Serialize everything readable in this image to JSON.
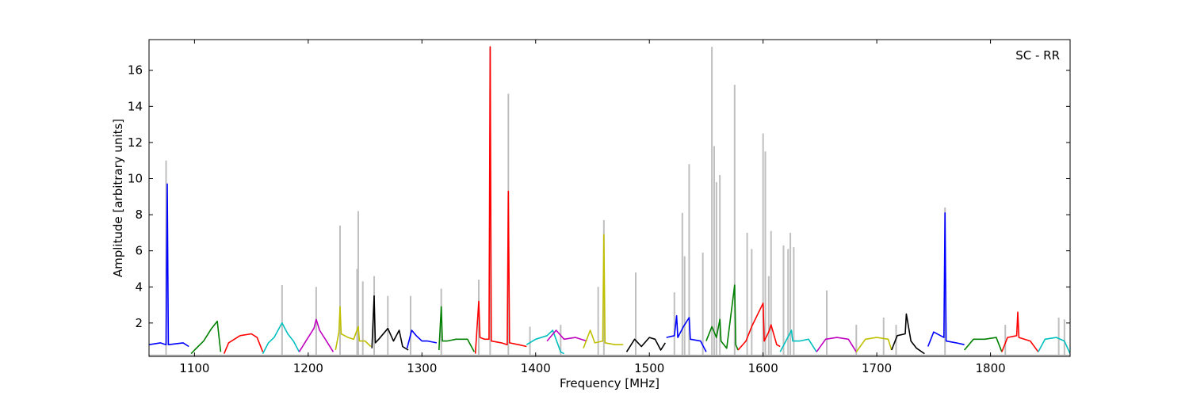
{
  "chart_data": {
    "type": "line",
    "xlabel": "Frequency [MHz]",
    "ylabel": "Amplitude [arbitrary units]",
    "annotation": "SC - RR",
    "xlim": [
      1060,
      1870
    ],
    "ylim": [
      0.15,
      17.7
    ],
    "xticks": [
      1100,
      1200,
      1300,
      1400,
      1500,
      1600,
      1700,
      1800
    ],
    "yticks": [
      2,
      4,
      6,
      8,
      10,
      12,
      14,
      16
    ],
    "grid": false,
    "background_color": "#bfbfbf",
    "background_baseline": 0.25,
    "background_spikes": [
      {
        "x": 1075,
        "y": 11.0
      },
      {
        "x": 1177,
        "y": 4.1
      },
      {
        "x": 1207,
        "y": 4.0
      },
      {
        "x": 1228,
        "y": 7.4
      },
      {
        "x": 1243,
        "y": 5.0
      },
      {
        "x": 1244,
        "y": 8.2
      },
      {
        "x": 1248,
        "y": 4.3
      },
      {
        "x": 1258,
        "y": 4.6
      },
      {
        "x": 1270,
        "y": 3.5
      },
      {
        "x": 1290,
        "y": 3.5
      },
      {
        "x": 1317,
        "y": 3.9
      },
      {
        "x": 1350,
        "y": 4.4
      },
      {
        "x": 1360,
        "y": 17.3
      },
      {
        "x": 1376,
        "y": 14.7
      },
      {
        "x": 1395,
        "y": 1.8
      },
      {
        "x": 1422,
        "y": 1.9
      },
      {
        "x": 1455,
        "y": 4.0
      },
      {
        "x": 1460,
        "y": 7.7
      },
      {
        "x": 1488,
        "y": 4.8
      },
      {
        "x": 1522,
        "y": 3.7
      },
      {
        "x": 1529,
        "y": 8.1
      },
      {
        "x": 1531,
        "y": 5.7
      },
      {
        "x": 1535,
        "y": 10.8
      },
      {
        "x": 1547,
        "y": 5.9
      },
      {
        "x": 1555,
        "y": 17.3
      },
      {
        "x": 1557,
        "y": 11.8
      },
      {
        "x": 1559,
        "y": 9.8
      },
      {
        "x": 1562,
        "y": 10.2
      },
      {
        "x": 1575,
        "y": 15.2
      },
      {
        "x": 1586,
        "y": 7.0
      },
      {
        "x": 1590,
        "y": 6.1
      },
      {
        "x": 1600,
        "y": 12.5
      },
      {
        "x": 1602,
        "y": 11.5
      },
      {
        "x": 1605,
        "y": 4.6
      },
      {
        "x": 1607,
        "y": 7.1
      },
      {
        "x": 1618,
        "y": 6.3
      },
      {
        "x": 1622,
        "y": 6.1
      },
      {
        "x": 1624,
        "y": 7.0
      },
      {
        "x": 1627,
        "y": 6.2
      },
      {
        "x": 1656,
        "y": 3.8
      },
      {
        "x": 1682,
        "y": 1.9
      },
      {
        "x": 1706,
        "y": 2.3
      },
      {
        "x": 1717,
        "y": 1.9
      },
      {
        "x": 1760,
        "y": 8.4
      },
      {
        "x": 1813,
        "y": 1.9
      },
      {
        "x": 1860,
        "y": 2.3
      },
      {
        "x": 1865,
        "y": 2.2
      }
    ],
    "series": [
      {
        "color": "#0000ff",
        "x": [
          1060,
          1070,
          1075,
          1076,
          1077,
          1090,
          1095
        ],
        "y": [
          0.8,
          0.9,
          0.8,
          9.7,
          0.8,
          0.9,
          0.7
        ]
      },
      {
        "color": "#008000",
        "x": [
          1097,
          1100,
          1108,
          1115,
          1120,
          1123
        ],
        "y": [
          0.3,
          0.5,
          1.0,
          1.7,
          2.1,
          0.4
        ]
      },
      {
        "color": "#ff0000",
        "x": [
          1126,
          1130,
          1140,
          1150,
          1155,
          1160
        ],
        "y": [
          0.3,
          0.9,
          1.3,
          1.4,
          1.2,
          0.4
        ]
      },
      {
        "color": "#00bfbf",
        "x": [
          1160,
          1165,
          1170,
          1177,
          1182,
          1187,
          1192
        ],
        "y": [
          0.3,
          0.9,
          1.2,
          2.0,
          1.4,
          1.0,
          0.4
        ]
      },
      {
        "color": "#bf00bf",
        "x": [
          1192,
          1200,
          1205,
          1207,
          1210,
          1215,
          1222
        ],
        "y": [
          0.4,
          1.2,
          1.7,
          2.2,
          1.6,
          1.1,
          0.4
        ]
      },
      {
        "color": "#bfbf00",
        "x": [
          1224,
          1227,
          1228,
          1229,
          1235,
          1240,
          1244,
          1245,
          1250,
          1255
        ],
        "y": [
          0.5,
          1.5,
          2.9,
          1.4,
          1.2,
          1.1,
          1.8,
          1.0,
          1.0,
          0.7
        ]
      },
      {
        "color": "#000000",
        "x": [
          1256,
          1258,
          1259,
          1262,
          1270,
          1275,
          1280,
          1283,
          1288
        ],
        "y": [
          0.6,
          3.5,
          0.9,
          1.1,
          1.7,
          1.0,
          1.6,
          0.7,
          0.5
        ]
      },
      {
        "color": "#0000ff",
        "x": [
          1287,
          1291,
          1295,
          1300,
          1305,
          1313
        ],
        "y": [
          0.6,
          1.6,
          1.3,
          1.0,
          1.0,
          0.9
        ]
      },
      {
        "color": "#008000",
        "x": [
          1315,
          1317,
          1318,
          1322,
          1330,
          1340,
          1346
        ],
        "y": [
          0.5,
          2.9,
          1.0,
          1.0,
          1.1,
          1.1,
          0.4
        ]
      },
      {
        "color": "#ff0000",
        "x": [
          1347,
          1350,
          1351,
          1355,
          1359,
          1360,
          1361,
          1370,
          1375,
          1376,
          1377,
          1385,
          1392
        ],
        "y": [
          0.3,
          3.2,
          1.2,
          1.1,
          1.1,
          17.3,
          1.0,
          0.9,
          0.8,
          9.3,
          0.9,
          0.8,
          0.7
        ]
      },
      {
        "color": "#00bfbf",
        "x": [
          1392,
          1400,
          1410,
          1415,
          1422,
          1425
        ],
        "y": [
          0.8,
          1.1,
          1.3,
          1.6,
          0.4,
          0.3
        ]
      },
      {
        "color": "#bf00bf",
        "x": [
          1410,
          1418,
          1425,
          1435,
          1445
        ],
        "y": [
          1.0,
          1.6,
          1.1,
          1.2,
          1.0
        ]
      },
      {
        "color": "#bfbf00",
        "x": [
          1442,
          1448,
          1452,
          1459,
          1460,
          1461,
          1470,
          1477
        ],
        "y": [
          0.6,
          1.6,
          0.9,
          1.0,
          6.9,
          0.9,
          0.8,
          0.8
        ]
      },
      {
        "color": "#000000",
        "x": [
          1480,
          1487,
          1493,
          1500,
          1505,
          1510,
          1514
        ],
        "y": [
          0.4,
          1.1,
          0.7,
          1.2,
          1.1,
          0.5,
          0.9
        ]
      },
      {
        "color": "#0000ff",
        "x": [
          1515,
          1522,
          1524,
          1525,
          1530,
          1535,
          1536,
          1545,
          1550
        ],
        "y": [
          1.2,
          1.3,
          2.4,
          1.2,
          1.8,
          2.3,
          1.1,
          1.0,
          0.4
        ]
      },
      {
        "color": "#008000",
        "x": [
          1550,
          1555,
          1559,
          1562,
          1563,
          1568,
          1575,
          1576,
          1578
        ],
        "y": [
          1.0,
          1.8,
          1.2,
          2.2,
          1.0,
          0.6,
          4.1,
          0.8,
          0.5
        ]
      },
      {
        "color": "#ff0000",
        "x": [
          1578,
          1585,
          1590,
          1600,
          1601,
          1605,
          1607,
          1612,
          1615
        ],
        "y": [
          0.5,
          1.0,
          1.8,
          3.1,
          1.0,
          1.5,
          1.9,
          0.8,
          0.7
        ]
      },
      {
        "color": "#00bfbf",
        "x": [
          1615,
          1620,
          1625,
          1626,
          1632,
          1640,
          1647
        ],
        "y": [
          0.4,
          1.0,
          1.6,
          1.0,
          1.0,
          1.1,
          0.4
        ]
      },
      {
        "color": "#bf00bf",
        "x": [
          1647,
          1655,
          1665,
          1675,
          1682
        ],
        "y": [
          0.4,
          1.1,
          1.2,
          1.1,
          0.4
        ]
      },
      {
        "color": "#bfbf00",
        "x": [
          1682,
          1690,
          1700,
          1710,
          1713
        ],
        "y": [
          0.4,
          1.1,
          1.2,
          1.1,
          0.5
        ]
      },
      {
        "color": "#000000",
        "x": [
          1713,
          1718,
          1725,
          1726,
          1730,
          1735,
          1742
        ],
        "y": [
          0.5,
          1.3,
          1.4,
          2.5,
          1.0,
          0.6,
          0.3
        ]
      },
      {
        "color": "#0000ff",
        "x": [
          1745,
          1750,
          1759,
          1760,
          1761,
          1770,
          1777
        ],
        "y": [
          0.7,
          1.5,
          1.2,
          8.1,
          1.0,
          0.9,
          0.8
        ]
      },
      {
        "color": "#008000",
        "x": [
          1777,
          1785,
          1795,
          1805,
          1810
        ],
        "y": [
          0.5,
          1.1,
          1.1,
          1.2,
          0.4
        ]
      },
      {
        "color": "#ff0000",
        "x": [
          1810,
          1815,
          1823,
          1824,
          1825,
          1835,
          1842
        ],
        "y": [
          0.4,
          1.2,
          1.3,
          2.6,
          1.2,
          1.0,
          0.4
        ]
      },
      {
        "color": "#00bfbf",
        "x": [
          1842,
          1848,
          1858,
          1865,
          1870
        ],
        "y": [
          0.4,
          1.1,
          1.2,
          1.0,
          0.3
        ]
      }
    ]
  }
}
